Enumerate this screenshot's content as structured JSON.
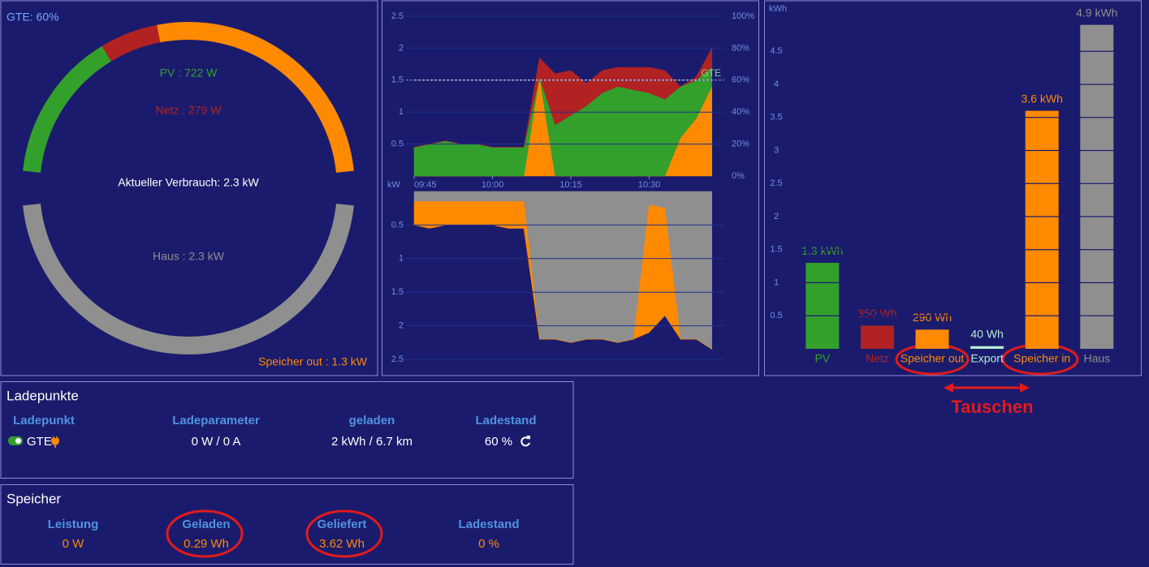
{
  "chart_data": [
    {
      "type": "donut",
      "title": "Aktueller Verbrauch: 2.3 kW",
      "note": "GTE: 60%",
      "sources": {
        "labels": [
          "PV : 722 W",
          "Netz : 279 W",
          "Speicher out : 1.3 kW"
        ],
        "values": [
          722,
          279,
          1300
        ],
        "colors": [
          "#33a02c",
          "#b22222",
          "#ff8a00"
        ]
      },
      "consumers": {
        "labels": [
          "Haus : 2.3 kW"
        ],
        "values": [
          2300
        ],
        "colors": [
          "#8f8f8f"
        ]
      }
    },
    {
      "type": "stacked_area",
      "x": [
        "09:45",
        "09:48",
        "09:51",
        "09:54",
        "09:57",
        "10:00",
        "10:03",
        "10:06",
        "10:09",
        "10:12",
        "10:15",
        "10:18",
        "10:21",
        "10:24",
        "10:27",
        "10:30",
        "10:33",
        "10:36",
        "10:39",
        "10:42"
      ],
      "xticks": [
        "09:45",
        "10:00",
        "10:15",
        "10:30"
      ],
      "ylim": [
        0,
        2.5
      ],
      "yticks": [
        0.5,
        1,
        1.5,
        2,
        2.5
      ],
      "y2lim": [
        0,
        100
      ],
      "y2ticks": [
        {
          "value": 0,
          "label": "0%"
        },
        {
          "value": 20,
          "label": "20%"
        },
        {
          "value": 40,
          "label": "40%"
        },
        {
          "value": 60,
          "label": "60%"
        },
        {
          "value": 80,
          "label": "80%"
        },
        {
          "value": 100,
          "label": "100%"
        }
      ],
      "grid": true,
      "series": [
        {
          "name": "Speicher",
          "color": "#ff8a00",
          "values": [
            0,
            0,
            0,
            0,
            0,
            0,
            0,
            0,
            1.55,
            0,
            0,
            0,
            0,
            0,
            0,
            0,
            0,
            0.6,
            0.9,
            1.4
          ]
        },
        {
          "color": "#33a02c",
          "values": [
            0.45,
            0.5,
            0.55,
            0.5,
            0.5,
            0.45,
            0.45,
            0.45,
            0,
            0.8,
            0.95,
            1.1,
            1.3,
            1.4,
            1.35,
            1.3,
            1.2,
            0.8,
            0.6,
            0.3
          ]
        },
        {
          "color": "#b22222",
          "values": [
            0,
            0,
            0,
            0,
            0,
            0,
            0,
            0,
            0.3,
            0.8,
            0.7,
            0.35,
            0.35,
            0.3,
            0.35,
            0.4,
            0.45,
            0,
            0.05,
            0.3
          ]
        },
        {
          "name": "GTE",
          "color": "#d8d8e8",
          "axis": "y2",
          "values": [
            60,
            60,
            60,
            60,
            60,
            60,
            60,
            60,
            60,
            60,
            60,
            60,
            60,
            60,
            60,
            60,
            60,
            60,
            60,
            60
          ]
        }
      ]
    },
    {
      "type": "stacked_area",
      "inverted": true,
      "ylabel": "kW",
      "ylim": [
        0,
        2.5
      ],
      "yticks": [
        0.5,
        1,
        1.5,
        2,
        2.5
      ],
      "grid": true,
      "series": [
        {
          "color": "#8f8f8f",
          "values": [
            0.15,
            0.15,
            0.15,
            0.15,
            0.15,
            0.15,
            0.15,
            0.15,
            2.2,
            2.2,
            2.25,
            2.2,
            2.2,
            2.25,
            2.2,
            0.2,
            0.25,
            2.2,
            2.2,
            2.35
          ]
        },
        {
          "color": "#ff8a00",
          "values": [
            0.35,
            0.4,
            0.35,
            0.35,
            0.35,
            0.35,
            0.4,
            0.4,
            0,
            0,
            0,
            0,
            0,
            0,
            0,
            1.9,
            1.6,
            0,
            0,
            0
          ]
        }
      ]
    },
    {
      "type": "bar",
      "ylabel": "kWh",
      "categories": [
        "PV",
        "Netz",
        "Speicher out",
        "Export",
        "Speicher in",
        "Haus"
      ],
      "values": [
        1.3,
        0.35,
        0.29,
        0.04,
        3.6,
        4.9
      ],
      "value_labels": [
        "1.3 kWh",
        "350 Wh",
        "290 Wh",
        "40 Wh",
        "3.6 kWh",
        "4.9 kWh"
      ],
      "colors": [
        "#33a02c",
        "#b22222",
        "#ff8a00",
        "#b5ecd0",
        "#ff8a00",
        "#8f8f8f"
      ],
      "ylim": [
        0,
        5
      ],
      "yticks": [
        0.5,
        1,
        1.5,
        2,
        2.5,
        3,
        3.5,
        4,
        4.5
      ],
      "grid": true,
      "annotation": "Tauschen"
    }
  ],
  "ladepunkte": {
    "title": "Ladepunkte",
    "headers": [
      "Ladepunkt",
      "Ladeparameter",
      "geladen",
      "Ladestand"
    ],
    "rows": [
      [
        "GTE",
        "0 W / 0 A",
        "2 kWh / 6.7 km",
        "60 %"
      ]
    ]
  },
  "speicher": {
    "title": "Speicher",
    "headers": [
      "Leistung",
      "Geladen",
      "Geliefert",
      "Ladestand"
    ],
    "values": [
      "0 W",
      "0.29 Wh",
      "3.62 Wh",
      "0 %"
    ]
  }
}
